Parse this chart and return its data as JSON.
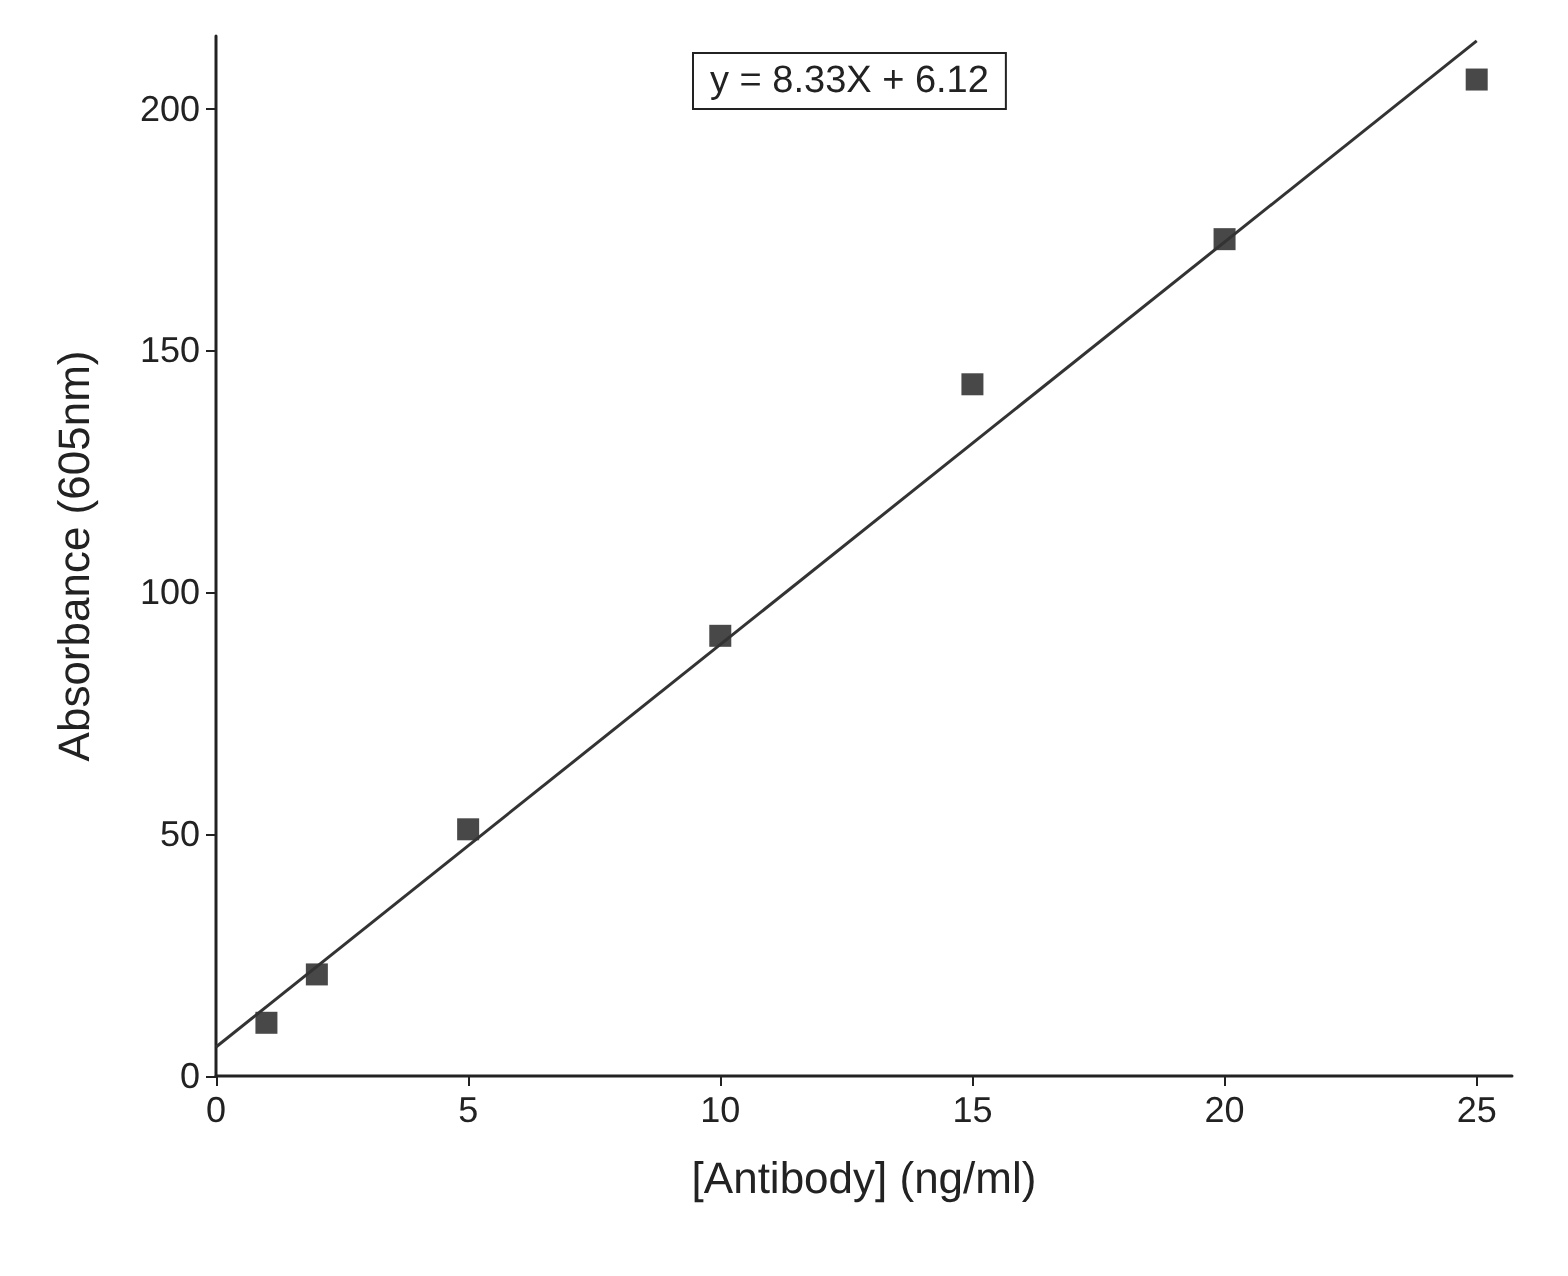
{
  "chart_data": {
    "type": "scatter",
    "xlabel": "[Antibody] (ng/ml)",
    "ylabel": "Absorbance (605nm)",
    "annotations": [
      "y = 8.33X + 6.12"
    ],
    "x": [
      1,
      2,
      5,
      10,
      15,
      20,
      25
    ],
    "series": [
      {
        "color": "#1a1a1a",
        "marker": "square",
        "values": [
          11,
          21,
          51,
          91,
          143,
          173,
          206
        ]
      },
      {
        "type": "line",
        "color": "#333333",
        "marker": "none",
        "line_style": "solid",
        "x": [
          0,
          25
        ],
        "values": [
          6,
          214
        ]
      }
    ],
    "xlim": [
      0,
      25.7
    ],
    "ylim": [
      0,
      215
    ],
    "xticks": [
      0,
      5,
      10,
      15,
      20,
      25
    ],
    "yticks": [
      0,
      50,
      100,
      150,
      200
    ],
    "grid": false
  }
}
